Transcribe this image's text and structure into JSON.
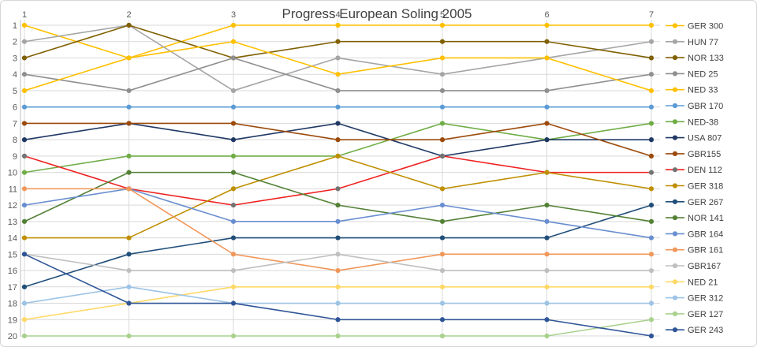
{
  "chart": {
    "title": "Progress European Soling 2005"
  },
  "chart_data": {
    "type": "line",
    "title": "Progress European Soling 2005",
    "xlabel": "",
    "ylabel": "",
    "x_labels": [
      "1",
      "2",
      "3",
      "4",
      "5",
      "6",
      "7"
    ],
    "y_tick_labels": [
      "1",
      "2",
      "3",
      "4",
      "5",
      "6",
      "7",
      "8",
      "9",
      "10",
      "11",
      "12",
      "13",
      "14",
      "15",
      "16",
      "17",
      "18",
      "19",
      "20"
    ],
    "y_axis": {
      "min": 1,
      "max": 20,
      "reversed": true,
      "note": "rank, 1 = leader at top"
    },
    "grid": true,
    "legend_position": "right",
    "series": [
      {
        "name": "GER 300",
        "color": "#FFC000",
        "values": [
          1,
          3,
          1,
          1,
          1,
          1,
          1
        ]
      },
      {
        "name": "HUN 77",
        "color": "#A5A5A5",
        "values": [
          2,
          1,
          5,
          3,
          4,
          3,
          2
        ]
      },
      {
        "name": "NOR 133",
        "color": "#806000",
        "values": [
          3,
          1,
          3,
          2,
          2,
          2,
          3
        ]
      },
      {
        "name": "NED 25",
        "color": "#8F8F8F",
        "values": [
          4,
          5,
          3,
          5,
          5,
          5,
          4
        ]
      },
      {
        "name": "NED 33",
        "color": "#FFC000",
        "values": [
          5,
          3,
          2,
          4,
          3,
          3,
          5
        ]
      },
      {
        "name": "GBR 170",
        "color": "#5B9BD5",
        "values": [
          6,
          6,
          6,
          6,
          6,
          6,
          6
        ]
      },
      {
        "name": "NED-38",
        "color": "#70AD47",
        "values": [
          10,
          9,
          9,
          9,
          7,
          8,
          7
        ]
      },
      {
        "name": "USA 807",
        "color": "#1F3864",
        "values": [
          8,
          7,
          8,
          7,
          9,
          8,
          8
        ]
      },
      {
        "name": "GBR155",
        "color": "#9C4A0B",
        "values": [
          7,
          7,
          7,
          8,
          8,
          7,
          9
        ]
      },
      {
        "name": "DEN 112",
        "color": "#EE2222",
        "marker_color": "#737373",
        "values": [
          9,
          11,
          12,
          11,
          9,
          10,
          10
        ]
      },
      {
        "name": "GER 318",
        "color": "#BF8F00",
        "values": [
          14,
          14,
          11,
          9,
          11,
          10,
          11
        ]
      },
      {
        "name": "GER 267",
        "color": "#1F4E79",
        "values": [
          17,
          15,
          14,
          14,
          14,
          14,
          12
        ]
      },
      {
        "name": "NOR 141",
        "color": "#538135",
        "values": [
          13,
          10,
          10,
          12,
          13,
          12,
          13
        ]
      },
      {
        "name": "GBR 164",
        "color": "#698ED0",
        "values": [
          12,
          11,
          13,
          13,
          12,
          13,
          14
        ]
      },
      {
        "name": "GBR 161",
        "color": "#F1975A",
        "values": [
          11,
          11,
          15,
          16,
          15,
          15,
          15
        ]
      },
      {
        "name": "GBR167",
        "color": "#BFBFBF",
        "values": [
          15,
          16,
          16,
          15,
          16,
          16,
          16
        ]
      },
      {
        "name": "NED 21",
        "color": "#FFD966",
        "values": [
          19,
          18,
          17,
          17,
          17,
          17,
          17
        ]
      },
      {
        "name": "GER 312",
        "color": "#9DC3E6",
        "values": [
          18,
          17,
          18,
          18,
          18,
          18,
          18
        ]
      },
      {
        "name": "GER 127",
        "color": "#A9D18E",
        "values": [
          20,
          20,
          20,
          20,
          20,
          20,
          19
        ]
      },
      {
        "name": "GER 243",
        "color": "#2F5597",
        "values": [
          15,
          18,
          18,
          19,
          19,
          19,
          20
        ]
      }
    ]
  }
}
